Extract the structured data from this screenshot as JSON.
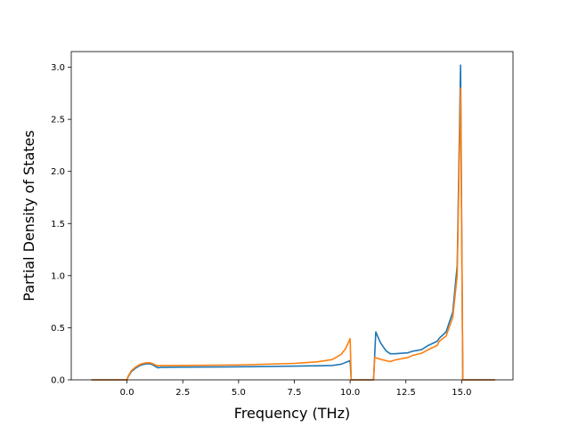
{
  "chart_data": {
    "type": "line",
    "title": "",
    "xlabel": "Frequency (THz)",
    "ylabel": "Partial Density of States",
    "xlim": [
      -2.5,
      17.3
    ],
    "ylim": [
      0.0,
      3.15
    ],
    "xticks": [
      0.0,
      2.5,
      5.0,
      7.5,
      10.0,
      12.5,
      15.0
    ],
    "xtick_labels": [
      "0.0",
      "2.5",
      "5.0",
      "7.5",
      "10.0",
      "12.5",
      "15.0"
    ],
    "yticks": [
      0.0,
      0.5,
      1.0,
      1.5,
      2.0,
      2.5,
      3.0
    ],
    "ytick_labels": [
      "0.0",
      "0.5",
      "1.0",
      "1.5",
      "2.0",
      "2.5",
      "3.0"
    ],
    "grid": false,
    "legend": "none",
    "series": [
      {
        "color": "#1f77b4",
        "points": [
          [
            -1.6,
            0.0
          ],
          [
            0.0,
            0.0
          ],
          [
            0.05,
            0.03
          ],
          [
            0.2,
            0.08
          ],
          [
            0.4,
            0.115
          ],
          [
            0.6,
            0.14
          ],
          [
            0.8,
            0.152
          ],
          [
            1.0,
            0.155
          ],
          [
            1.15,
            0.145
          ],
          [
            1.3,
            0.125
          ],
          [
            1.4,
            0.115
          ],
          [
            1.5,
            0.12
          ],
          [
            2.5,
            0.122
          ],
          [
            5.0,
            0.125
          ],
          [
            7.5,
            0.132
          ],
          [
            8.5,
            0.135
          ],
          [
            9.2,
            0.138
          ],
          [
            9.6,
            0.15
          ],
          [
            10.0,
            0.185
          ],
          [
            10.05,
            0.0
          ],
          [
            11.05,
            0.0
          ],
          [
            11.15,
            0.46
          ],
          [
            11.35,
            0.36
          ],
          [
            11.6,
            0.28
          ],
          [
            11.8,
            0.25
          ],
          [
            12.0,
            0.25
          ],
          [
            12.6,
            0.26
          ],
          [
            12.8,
            0.275
          ],
          [
            13.2,
            0.29
          ],
          [
            13.5,
            0.33
          ],
          [
            13.9,
            0.37
          ],
          [
            14.0,
            0.4
          ],
          [
            14.3,
            0.46
          ],
          [
            14.6,
            0.65
          ],
          [
            14.8,
            1.1
          ],
          [
            14.95,
            3.02
          ],
          [
            15.05,
            0.0
          ],
          [
            16.5,
            0.0
          ]
        ]
      },
      {
        "color": "#ff7f0e",
        "points": [
          [
            -1.6,
            0.0
          ],
          [
            0.0,
            0.0
          ],
          [
            0.05,
            0.035
          ],
          [
            0.2,
            0.09
          ],
          [
            0.4,
            0.125
          ],
          [
            0.6,
            0.15
          ],
          [
            0.8,
            0.162
          ],
          [
            1.0,
            0.165
          ],
          [
            1.15,
            0.155
          ],
          [
            1.3,
            0.14
          ],
          [
            1.4,
            0.135
          ],
          [
            1.5,
            0.137
          ],
          [
            2.5,
            0.138
          ],
          [
            5.0,
            0.143
          ],
          [
            7.5,
            0.158
          ],
          [
            8.5,
            0.172
          ],
          [
            9.2,
            0.195
          ],
          [
            9.6,
            0.245
          ],
          [
            9.8,
            0.3
          ],
          [
            10.0,
            0.395
          ],
          [
            10.05,
            0.0
          ],
          [
            11.05,
            0.0
          ],
          [
            11.1,
            0.215
          ],
          [
            11.4,
            0.195
          ],
          [
            11.8,
            0.175
          ],
          [
            12.0,
            0.19
          ],
          [
            12.6,
            0.215
          ],
          [
            12.8,
            0.235
          ],
          [
            13.2,
            0.255
          ],
          [
            13.5,
            0.29
          ],
          [
            13.9,
            0.33
          ],
          [
            14.0,
            0.37
          ],
          [
            14.3,
            0.42
          ],
          [
            14.6,
            0.6
          ],
          [
            14.8,
            1.0
          ],
          [
            14.95,
            2.8
          ],
          [
            15.05,
            0.0
          ],
          [
            16.5,
            0.0
          ]
        ]
      }
    ]
  }
}
